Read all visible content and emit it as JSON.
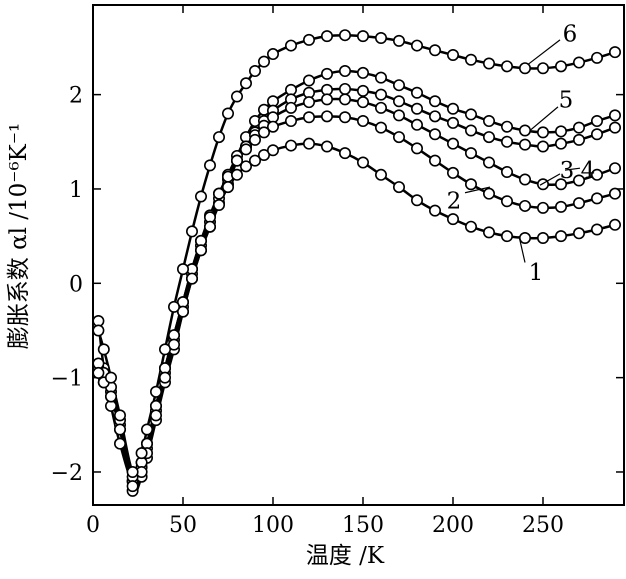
{
  "chart_data": {
    "type": "line",
    "xlabel": "温度 /K",
    "ylabel": "膨胀系数 αl /10⁻⁶K⁻¹",
    "xlim": [
      0,
      295
    ],
    "ylim": [
      -2.35,
      2.95
    ],
    "xticks": [
      0,
      50,
      100,
      150,
      200,
      250
    ],
    "yticks": [
      -2,
      -1,
      0,
      1,
      2
    ],
    "grid": false,
    "legend": "none",
    "series": [
      {
        "name": "1",
        "x": [
          3,
          6,
          10,
          15,
          22,
          27,
          30,
          35,
          40,
          45,
          50,
          55,
          60,
          65,
          70,
          75,
          80,
          85,
          90,
          95,
          100,
          110,
          120,
          130,
          140,
          150,
          160,
          170,
          180,
          190,
          200,
          210,
          220,
          230,
          240,
          250,
          260,
          270,
          280,
          290
        ],
        "y": [
          -0.4,
          -0.9,
          -1.3,
          -1.7,
          -2.1,
          -1.9,
          -1.7,
          -1.3,
          -0.9,
          -0.55,
          -0.2,
          0.15,
          0.45,
          0.72,
          0.95,
          1.15,
          1.35,
          1.55,
          1.72,
          1.84,
          1.93,
          2.05,
          2.15,
          2.22,
          2.25,
          2.23,
          2.18,
          2.1,
          2.02,
          1.93,
          1.85,
          1.79,
          1.72,
          1.66,
          1.62,
          1.6,
          1.61,
          1.65,
          1.72,
          1.78
        ],
        "label_pos": [
          225,
          0.2
        ],
        "label": "5"
      },
      {
        "name": "2",
        "x": [
          3,
          6,
          10,
          15,
          22,
          27,
          30,
          35,
          40,
          45,
          50,
          55,
          60,
          65,
          70,
          75,
          80,
          85,
          90,
          95,
          100,
          110,
          120,
          130,
          140,
          150,
          160,
          170,
          180,
          190,
          200,
          210,
          220,
          230,
          240,
          250,
          260,
          270,
          280,
          290
        ],
        "y": [
          -0.95,
          -1.05,
          -1.2,
          -1.55,
          -2.2,
          -2.05,
          -1.85,
          -1.45,
          -1.05,
          -0.7,
          -0.3,
          0.05,
          0.35,
          0.6,
          0.85,
          1.05,
          1.3,
          1.45,
          1.6,
          1.72,
          1.83,
          1.95,
          2.02,
          2.05,
          2.06,
          2.04,
          2.0,
          1.93,
          1.85,
          1.77,
          1.7,
          1.62,
          1.55,
          1.5,
          1.47,
          1.45,
          1.48,
          1.52,
          1.58,
          1.65
        ],
        "label": "4"
      },
      {
        "name": "3",
        "x": [
          3,
          6,
          10,
          15,
          22,
          27,
          30,
          35,
          40,
          45,
          50,
          55,
          60,
          65,
          70,
          75,
          80,
          85,
          90,
          95,
          100,
          110,
          120,
          130,
          140,
          150,
          160,
          170,
          180,
          190,
          200,
          210,
          220,
          230,
          240,
          250,
          260,
          270,
          280,
          290
        ],
        "y": [
          -0.9,
          -1.0,
          -1.15,
          -1.5,
          -2.1,
          -1.95,
          -1.75,
          -1.35,
          -0.95,
          -0.6,
          -0.25,
          0.1,
          0.4,
          0.65,
          0.9,
          1.1,
          1.3,
          1.45,
          1.57,
          1.67,
          1.76,
          1.86,
          1.92,
          1.95,
          1.95,
          1.92,
          1.86,
          1.78,
          1.68,
          1.58,
          1.48,
          1.38,
          1.28,
          1.18,
          1.1,
          1.05,
          1.05,
          1.09,
          1.15,
          1.22
        ],
        "label": "3"
      },
      {
        "name": "4",
        "x": [
          3,
          6,
          10,
          15,
          22,
          27,
          30,
          35,
          40,
          45,
          50,
          55,
          60,
          65,
          70,
          75,
          80,
          85,
          90,
          95,
          100,
          110,
          120,
          130,
          140,
          150,
          160,
          170,
          180,
          190,
          200,
          210,
          220,
          230,
          240,
          250,
          260,
          270,
          280,
          290
        ],
        "y": [
          -0.85,
          -0.95,
          -1.1,
          -1.45,
          -2.05,
          -1.9,
          -1.7,
          -1.3,
          -0.9,
          -0.55,
          -0.2,
          0.15,
          0.45,
          0.7,
          0.95,
          1.13,
          1.3,
          1.42,
          1.52,
          1.6,
          1.66,
          1.72,
          1.76,
          1.77,
          1.76,
          1.72,
          1.65,
          1.55,
          1.43,
          1.3,
          1.17,
          1.05,
          0.95,
          0.87,
          0.82,
          0.8,
          0.81,
          0.85,
          0.9,
          0.95
        ],
        "label": "2"
      },
      {
        "name": "5",
        "x": [
          3,
          6,
          10,
          15,
          22,
          27,
          30,
          35,
          40,
          45,
          50,
          55,
          60,
          65,
          70,
          75,
          80,
          85,
          90,
          95,
          100,
          110,
          120,
          130,
          140,
          150,
          160,
          170,
          180,
          190,
          200,
          210,
          220,
          230,
          240,
          250,
          260,
          270,
          280,
          290
        ],
        "y": [
          -0.95,
          -1.05,
          -1.2,
          -1.55,
          -2.15,
          -2.0,
          -1.8,
          -1.4,
          -1.0,
          -0.65,
          -0.3,
          0.05,
          0.35,
          0.6,
          0.83,
          1.02,
          1.15,
          1.24,
          1.3,
          1.36,
          1.41,
          1.46,
          1.48,
          1.45,
          1.38,
          1.28,
          1.15,
          1.02,
          0.88,
          0.77,
          0.68,
          0.6,
          0.54,
          0.5,
          0.48,
          0.48,
          0.5,
          0.53,
          0.57,
          0.62
        ],
        "label": "1"
      },
      {
        "name": "6",
        "x": [
          3,
          6,
          10,
          15,
          22,
          27,
          30,
          35,
          40,
          45,
          50,
          55,
          60,
          65,
          70,
          75,
          80,
          85,
          90,
          95,
          100,
          110,
          120,
          130,
          140,
          150,
          160,
          170,
          180,
          190,
          200,
          210,
          220,
          230,
          240,
          250,
          260,
          270,
          280,
          290
        ],
        "y": [
          -0.5,
          -0.7,
          -1.0,
          -1.4,
          -2.0,
          -1.8,
          -1.55,
          -1.15,
          -0.7,
          -0.25,
          0.15,
          0.55,
          0.92,
          1.25,
          1.55,
          1.8,
          1.98,
          2.12,
          2.25,
          2.35,
          2.43,
          2.52,
          2.58,
          2.62,
          2.63,
          2.62,
          2.6,
          2.57,
          2.52,
          2.47,
          2.42,
          2.37,
          2.33,
          2.3,
          2.28,
          2.28,
          2.3,
          2.34,
          2.39,
          2.45
        ],
        "label": "6"
      }
    ]
  }
}
